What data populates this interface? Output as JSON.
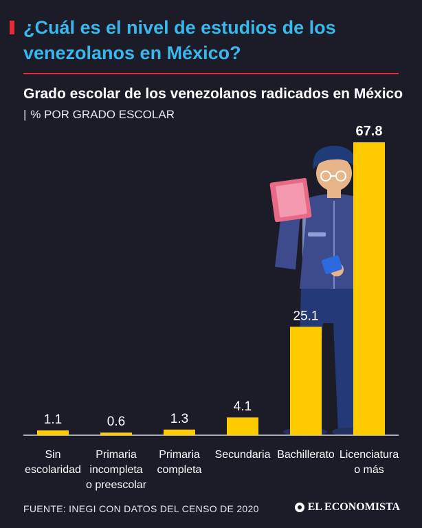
{
  "header": {
    "title": "¿Cuál es el nivel de estudios de los venezolanos en México?",
    "subtitle_bold": "Grado escolar de los venezolanos radicados en México",
    "subtitle_separator": "|",
    "subtitle_unit": "% POR GRADO ESCOLAR"
  },
  "chart_data": {
    "type": "bar",
    "title": "Grado escolar de los venezolanos radicados en México",
    "ylabel": "% POR GRADO ESCOLAR",
    "xlabel": "",
    "ylim": [
      0,
      70
    ],
    "categories": [
      [
        "Sin",
        "escolaridad"
      ],
      [
        "Primaria",
        "incompleta",
        "o preescolar"
      ],
      [
        "Primaria",
        "completa"
      ],
      [
        "Secundaria"
      ],
      [
        "Bachillerato"
      ],
      [
        "Licenciatura",
        "o más"
      ]
    ],
    "values": [
      1.1,
      0.6,
      1.3,
      4.1,
      25.1,
      67.8
    ],
    "value_labels": [
      "1.1",
      "0.6",
      "1.3",
      "4.1",
      "25.1",
      "67.8"
    ],
    "bar_color": "#ffcc00",
    "highlight_last_label_bold": true
  },
  "footer": {
    "source": "FUENTE: INEGI CON DATOS DEL CENSO DE 2020",
    "brand": "EL ECONOMISTA"
  },
  "colors": {
    "background": "#1b1c28",
    "title": "#3ab8ee",
    "accent": "#e52b38",
    "bar": "#ffcc00"
  }
}
